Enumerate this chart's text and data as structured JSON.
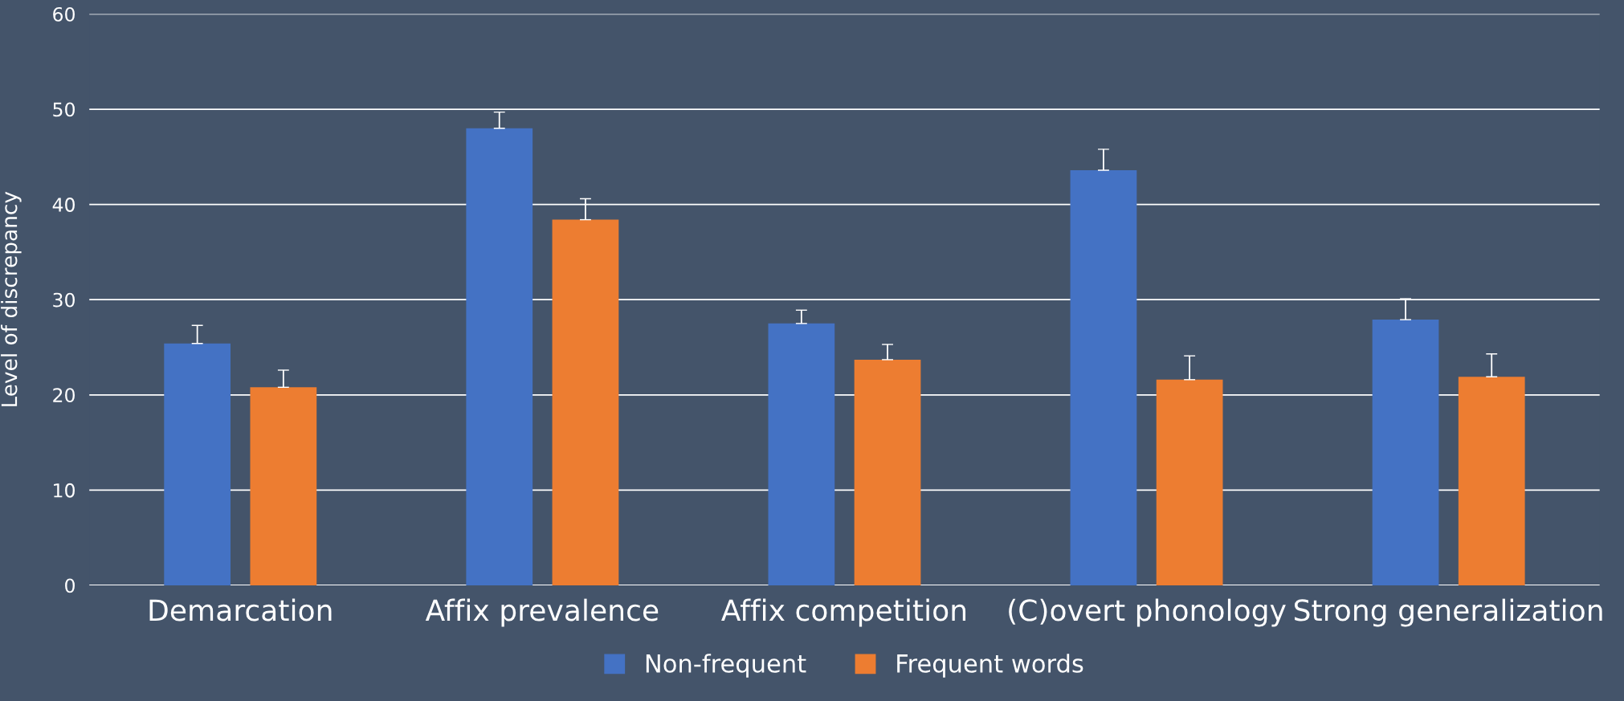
{
  "chart_data": {
    "type": "bar",
    "ylabel": "Level of discrepancy",
    "categories": [
      "Demarcation",
      "Affix prevalence",
      "Affix competition",
      "(C)overt phonology",
      "Strong generalization"
    ],
    "series": [
      {
        "name": "Non-frequent",
        "color": "#4472c4",
        "values": [
          25.4,
          48.0,
          27.5,
          43.6,
          27.9
        ],
        "errors": [
          [
            25.4,
            27.3
          ],
          [
            48.0,
            49.7
          ],
          [
            27.5,
            28.9
          ],
          [
            43.6,
            45.8
          ],
          [
            27.9,
            30.1
          ]
        ]
      },
      {
        "name": "Frequent words",
        "color": "#ed7d31",
        "values": [
          20.8,
          38.4,
          23.7,
          21.6,
          21.9
        ],
        "errors": [
          [
            20.8,
            22.6
          ],
          [
            38.4,
            40.6
          ],
          [
            23.7,
            25.3
          ],
          [
            21.6,
            24.1
          ],
          [
            21.9,
            24.3
          ]
        ]
      }
    ],
    "ylim": [
      0,
      60
    ],
    "yticks": [
      0,
      10,
      20,
      30,
      40,
      50,
      60
    ],
    "grid": "y",
    "legend": "bottom"
  }
}
